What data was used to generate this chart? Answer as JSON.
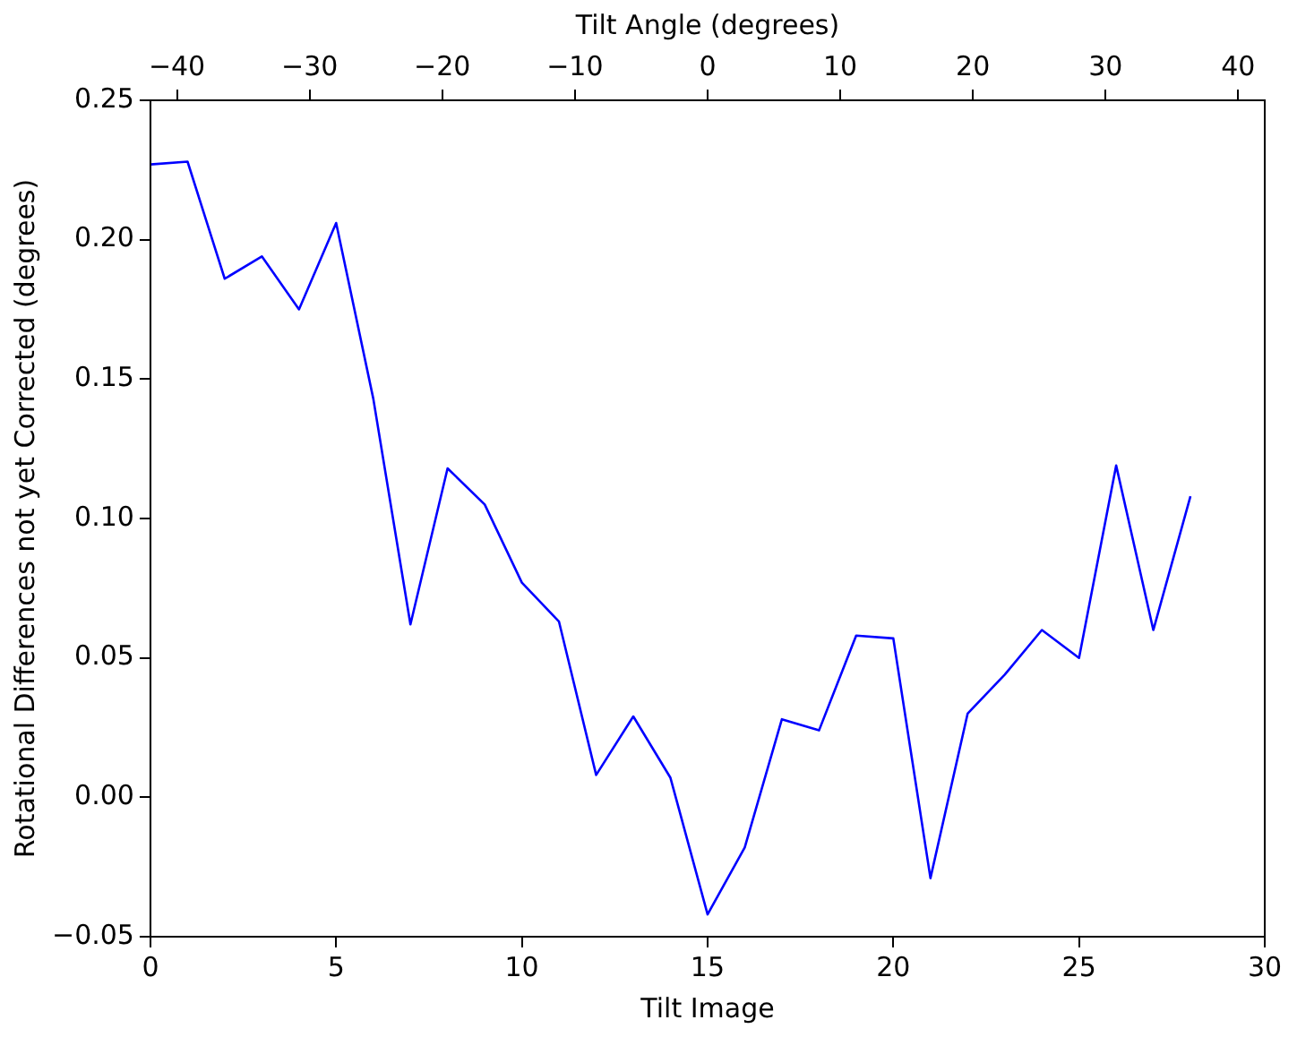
{
  "chart_data": {
    "type": "line",
    "xlabel": "Tilt Image",
    "ylabel": "Rotational Differences not yet Corrected (degrees)",
    "x2label": "Tilt Angle (degrees)",
    "x": [
      0,
      1,
      2,
      3,
      4,
      5,
      6,
      7,
      8,
      9,
      10,
      11,
      12,
      13,
      14,
      15,
      16,
      17,
      18,
      19,
      20,
      21,
      22,
      23,
      24,
      25,
      26,
      27,
      28
    ],
    "series": [
      {
        "color": "#0000ff",
        "values": [
          0.227,
          0.228,
          0.186,
          0.194,
          0.175,
          0.206,
          0.143,
          0.062,
          0.118,
          0.105,
          0.077,
          0.063,
          0.008,
          0.029,
          0.007,
          -0.042,
          -0.018,
          0.028,
          0.024,
          0.058,
          0.057,
          -0.029,
          0.03,
          0.044,
          0.06,
          0.05,
          0.119,
          0.06,
          0.108
        ]
      }
    ],
    "xlim": [
      0,
      30
    ],
    "xticks": [
      0,
      5,
      10,
      15,
      20,
      25,
      30
    ],
    "x2lim": [
      -42,
      42
    ],
    "x2ticks": [
      {
        "value": -40,
        "label": "−40"
      },
      {
        "value": -30,
        "label": "−30"
      },
      {
        "value": -20,
        "label": "−20"
      },
      {
        "value": -10,
        "label": "−10"
      },
      0,
      10,
      20,
      30,
      40
    ],
    "ylim": [
      -0.05,
      0.25
    ],
    "yticks": [
      {
        "value": -0.05,
        "label": "−0.05"
      },
      {
        "value": 0,
        "label": "0.00"
      },
      {
        "value": 0.05,
        "label": "0.05"
      },
      {
        "value": 0.1,
        "label": "0.10"
      },
      {
        "value": 0.15,
        "label": "0.15"
      },
      {
        "value": 0.2,
        "label": "0.20"
      },
      {
        "value": 0.25,
        "label": "0.25"
      }
    ],
    "grid": false,
    "legend": false,
    "marker": "none",
    "line_style": "solid"
  }
}
